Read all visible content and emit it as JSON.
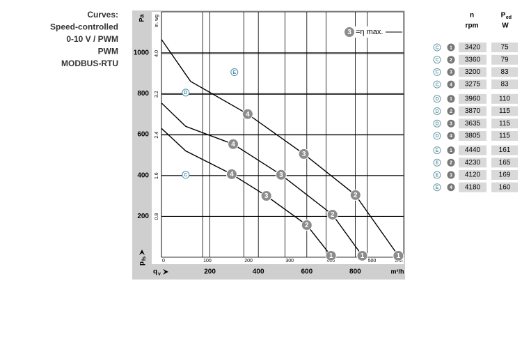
{
  "caption": [
    "Curves:",
    "Speed-controlled",
    "0-10 V / PWM",
    "PWM",
    "MODBUS-RTU"
  ],
  "chart_data": {
    "type": "line",
    "ylabel": "Pa",
    "y2label": "in. wg",
    "xlabel": {
      "text": "q",
      "sub": "v"
    },
    "pressure_label": {
      "text": "p",
      "sub": "fs"
    },
    "xunit": "m³/h",
    "x2label": "cfm",
    "xlim": [
      0,
      1000
    ],
    "xticks": [
      200,
      400,
      600,
      800
    ],
    "ylim": [
      0,
      1200
    ],
    "yticks": [
      200,
      400,
      600,
      800,
      1000
    ],
    "x2lim": [
      0,
      588.6
    ],
    "x2ticks": [
      0,
      100,
      200,
      300,
      400,
      500
    ],
    "y2lim": [
      0,
      4.82
    ],
    "y2ticks": [
      0.8,
      1.6,
      2.4,
      {
        "value": 4,
        "label": "4.0"
      },
      3.2
    ],
    "grid": true,
    "color": "#000000",
    "point_color": "#8c8c8c",
    "legend": {
      "point": "3",
      "text": "=η max."
    },
    "series": [
      {
        "name": "C",
        "label_at": [
          100,
          403
        ],
        "x": [
          0,
          100,
          290,
          433,
          600,
          700
        ],
        "values": [
          630,
          520,
          406,
          300,
          157,
          7
        ],
        "point_labels": [
          null,
          null,
          "4",
          "3",
          "2",
          "1"
        ]
      },
      {
        "name": "D",
        "label_at": [
          100,
          805
        ],
        "x": [
          0,
          100,
          296,
          494,
          706,
          829
        ],
        "values": [
          754,
          640,
          553,
          403,
          208,
          7
        ],
        "point_labels": [
          null,
          null,
          "4",
          "3",
          "2",
          "1"
        ]
      },
      {
        "name": "E",
        "label_at": [
          301,
          905
        ],
        "x": [
          0,
          120,
          356,
          588,
          801,
          978
        ],
        "values": [
          1065,
          860,
          700,
          505,
          304,
          7
        ],
        "point_labels": [
          null,
          null,
          "4",
          "3",
          "2",
          "1"
        ]
      }
    ]
  },
  "table": {
    "header": [
      {
        "text": "n",
        "unit": "rpm"
      },
      {
        "text": "P",
        "sub": "ed",
        "unit": "W"
      }
    ],
    "rows": [
      [
        "C",
        "1",
        "3420",
        "75"
      ],
      [
        "C",
        "2",
        "3360",
        "79"
      ],
      [
        "C",
        "3",
        "3200",
        "83"
      ],
      [
        "C",
        "4",
        "3275",
        "83"
      ],
      [
        "D",
        "1",
        "3960",
        "110"
      ],
      [
        "D",
        "2",
        "3870",
        "115"
      ],
      [
        "D",
        "3",
        "3635",
        "115"
      ],
      [
        "D",
        "4",
        "3805",
        "115"
      ],
      [
        "E",
        "1",
        "4440",
        "161"
      ],
      [
        "E",
        "2",
        "4230",
        "165"
      ],
      [
        "E",
        "3",
        "4120",
        "169"
      ],
      [
        "E",
        "4",
        "4180",
        "160"
      ]
    ]
  }
}
